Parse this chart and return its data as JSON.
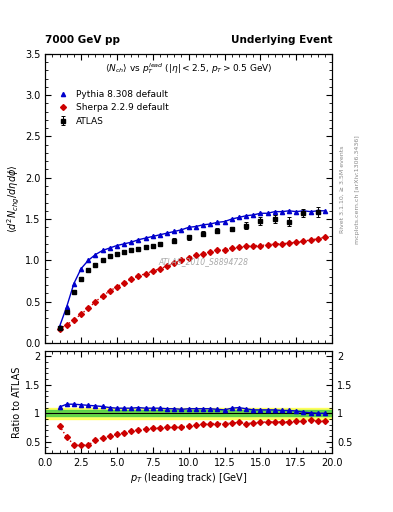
{
  "title_left": "7000 GeV pp",
  "title_right": "Underlying Event",
  "plot_label": "$\\langle N_{ch}\\rangle$ vs $p_T^{lead}$ ($|\\eta| < 2.5$, $p_T > 0.5$ GeV)",
  "ylabel_main": "$\\langle d^2 N_{chg}/d\\eta d\\phi\\rangle$",
  "ylabel_ratio": "Ratio to ATLAS",
  "xlabel": "$p_T$ (leading track) [GeV]",
  "watermark": "ATLAS_2010_S8894728",
  "right_label1": "Rivet 3.1.10, ≥ 3.5M events",
  "right_label2": "mcplots.cern.ch [arXiv:1306.3436]",
  "xlim": [
    0,
    20
  ],
  "ylim_main": [
    0,
    3.5
  ],
  "atlas_pt": [
    1.0,
    1.5,
    2.0,
    2.5,
    3.0,
    3.5,
    4.0,
    4.5,
    5.0,
    5.5,
    6.0,
    6.5,
    7.0,
    7.5,
    8.0,
    9.0,
    10.0,
    11.0,
    12.0,
    13.0,
    14.0,
    15.0,
    16.0,
    17.0,
    18.0,
    19.0
  ],
  "atlas_y": [
    0.18,
    0.38,
    0.62,
    0.78,
    0.88,
    0.95,
    1.0,
    1.05,
    1.08,
    1.1,
    1.12,
    1.14,
    1.16,
    1.18,
    1.2,
    1.24,
    1.28,
    1.32,
    1.36,
    1.38,
    1.42,
    1.48,
    1.5,
    1.47,
    1.57,
    1.58
  ],
  "atlas_err": [
    0.02,
    0.02,
    0.02,
    0.02,
    0.02,
    0.02,
    0.02,
    0.02,
    0.02,
    0.02,
    0.02,
    0.02,
    0.02,
    0.02,
    0.02,
    0.03,
    0.03,
    0.03,
    0.03,
    0.03,
    0.04,
    0.05,
    0.05,
    0.05,
    0.05,
    0.06
  ],
  "pythia_pt": [
    1.0,
    1.5,
    2.0,
    2.5,
    3.0,
    3.5,
    4.0,
    4.5,
    5.0,
    5.5,
    6.0,
    6.5,
    7.0,
    7.5,
    8.0,
    8.5,
    9.0,
    9.5,
    10.0,
    10.5,
    11.0,
    11.5,
    12.0,
    12.5,
    13.0,
    13.5,
    14.0,
    14.5,
    15.0,
    15.5,
    16.0,
    16.5,
    17.0,
    17.5,
    18.0,
    18.5,
    19.0,
    19.5
  ],
  "pythia_y": [
    0.2,
    0.44,
    0.72,
    0.9,
    1.0,
    1.07,
    1.12,
    1.15,
    1.18,
    1.2,
    1.22,
    1.25,
    1.27,
    1.29,
    1.31,
    1.33,
    1.35,
    1.37,
    1.4,
    1.41,
    1.43,
    1.44,
    1.46,
    1.47,
    1.5,
    1.52,
    1.54,
    1.55,
    1.57,
    1.57,
    1.59,
    1.59,
    1.6,
    1.59,
    1.6,
    1.59,
    1.6,
    1.6
  ],
  "sherpa_pt": [
    1.0,
    1.5,
    2.0,
    2.5,
    3.0,
    3.5,
    4.0,
    4.5,
    5.0,
    5.5,
    6.0,
    6.5,
    7.0,
    7.5,
    8.0,
    8.5,
    9.0,
    9.5,
    10.0,
    10.5,
    11.0,
    11.5,
    12.0,
    12.5,
    13.0,
    13.5,
    14.0,
    14.5,
    15.0,
    15.5,
    16.0,
    16.5,
    17.0,
    17.5,
    18.0,
    18.5,
    19.0,
    19.5
  ],
  "sherpa_y": [
    0.17,
    0.22,
    0.28,
    0.35,
    0.42,
    0.5,
    0.57,
    0.63,
    0.68,
    0.73,
    0.77,
    0.81,
    0.84,
    0.87,
    0.9,
    0.93,
    0.97,
    1.0,
    1.03,
    1.06,
    1.08,
    1.1,
    1.12,
    1.13,
    1.15,
    1.16,
    1.17,
    1.18,
    1.18,
    1.19,
    1.2,
    1.2,
    1.21,
    1.22,
    1.23,
    1.25,
    1.26,
    1.28
  ],
  "pythia_ratio": [
    1.11,
    1.16,
    1.16,
    1.15,
    1.14,
    1.13,
    1.12,
    1.1,
    1.09,
    1.09,
    1.09,
    1.1,
    1.09,
    1.09,
    1.09,
    1.08,
    1.08,
    1.07,
    1.08,
    1.08,
    1.08,
    1.08,
    1.07,
    1.06,
    1.09,
    1.1,
    1.08,
    1.06,
    1.06,
    1.06,
    1.06,
    1.05,
    1.05,
    1.04,
    1.02,
    1.01,
    1.0,
    1.0
  ],
  "sherpa_ratio": [
    0.78,
    0.58,
    0.45,
    0.45,
    0.44,
    0.53,
    0.57,
    0.6,
    0.63,
    0.66,
    0.69,
    0.71,
    0.72,
    0.74,
    0.75,
    0.76,
    0.76,
    0.76,
    0.78,
    0.79,
    0.81,
    0.82,
    0.82,
    0.82,
    0.83,
    0.84,
    0.82,
    0.83,
    0.84,
    0.85,
    0.85,
    0.85,
    0.85,
    0.86,
    0.86,
    0.88,
    0.86,
    0.87
  ],
  "atlas_color": "#000000",
  "pythia_color": "#0000cc",
  "sherpa_color": "#cc0000",
  "band_yellow": "#ffff44",
  "band_green": "#44cc44"
}
